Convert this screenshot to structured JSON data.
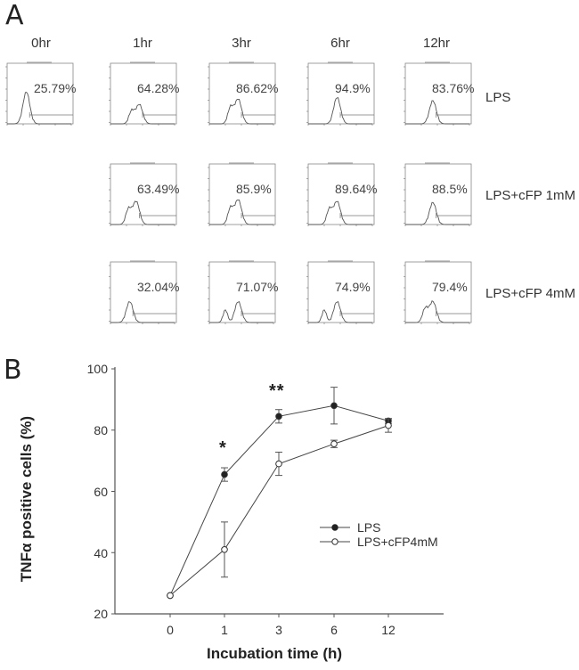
{
  "panels": {
    "a_label": "A",
    "b_label": "B"
  },
  "panel_a": {
    "columns": [
      "0hr",
      "1hr",
      "3hr",
      "6hr",
      "12hr"
    ],
    "rows": [
      {
        "label": "LPS",
        "values": [
          "25.79%",
          "64.28%",
          "86.62%",
          "94.9%",
          "83.76%"
        ]
      },
      {
        "label": "LPS+cFP 1mM",
        "values": [
          null,
          "63.49%",
          "85.9%",
          "89.64%",
          "88.5%"
        ]
      },
      {
        "label": "LPS+cFP 4mM",
        "values": [
          null,
          "32.04%",
          "71.07%",
          "74.9%",
          "79.4%"
        ]
      }
    ]
  },
  "chart_data": {
    "type": "line",
    "title": "",
    "xlabel": "Incubation time (h)",
    "ylabel": "TNFα positive cells (%)",
    "categories": [
      "0",
      "1",
      "3",
      "6",
      "12"
    ],
    "ylim": [
      20,
      100
    ],
    "yticks": [
      "20",
      "40",
      "60",
      "80",
      "100"
    ],
    "grid": false,
    "legend_position": "lower right",
    "series": [
      {
        "name": "LPS",
        "marker": "filled-circle",
        "values": [
          26,
          65.5,
          84.5,
          88,
          83
        ],
        "errors": [
          0.5,
          2.2,
          2.2,
          6,
          0.8
        ]
      },
      {
        "name": "LPS+cFP4mM",
        "marker": "open-circle",
        "values": [
          26,
          41,
          69,
          75.5,
          81.5
        ],
        "errors": [
          0.5,
          9,
          3.8,
          1.2,
          2.2
        ]
      }
    ],
    "annotations": [
      {
        "x": "1",
        "text": "*"
      },
      {
        "x": "3",
        "text": "**"
      }
    ]
  }
}
